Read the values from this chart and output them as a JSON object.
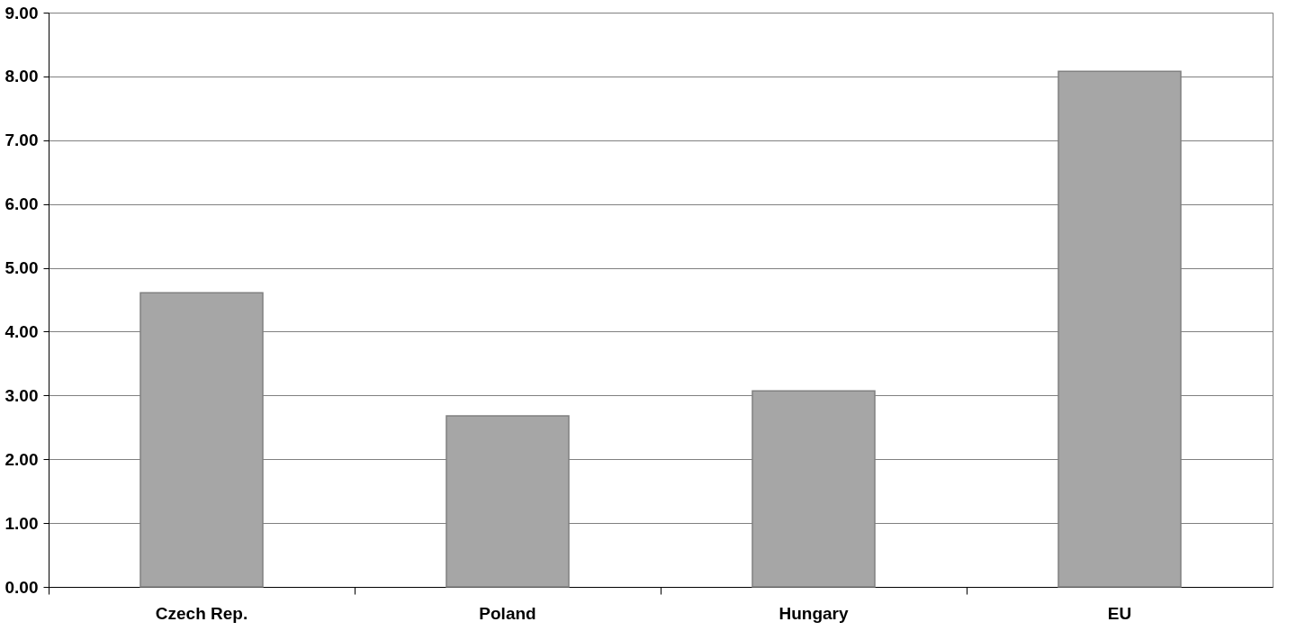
{
  "chart_data": {
    "type": "bar",
    "categories": [
      "Czech Rep.",
      "Poland",
      "Hungary",
      "EU"
    ],
    "series": [
      {
        "color": "#a6a6a6",
        "values": [
          4.61,
          2.68,
          3.07,
          8.08
        ]
      }
    ],
    "ylim": [
      0,
      9
    ],
    "yticks": [
      {
        "value": 0,
        "label": "0.00"
      },
      {
        "value": 1,
        "label": "1.00"
      },
      {
        "value": 2,
        "label": "2.00"
      },
      {
        "value": 3,
        "label": "3.00"
      },
      {
        "value": 4,
        "label": "4.00"
      },
      {
        "value": 5,
        "label": "5.00"
      },
      {
        "value": 6,
        "label": "6.00"
      },
      {
        "value": 7,
        "label": "7.00"
      },
      {
        "value": 8,
        "label": "8.00"
      },
      {
        "value": 9,
        "label": "9.00"
      }
    ],
    "grid": "y",
    "legend": false
  }
}
